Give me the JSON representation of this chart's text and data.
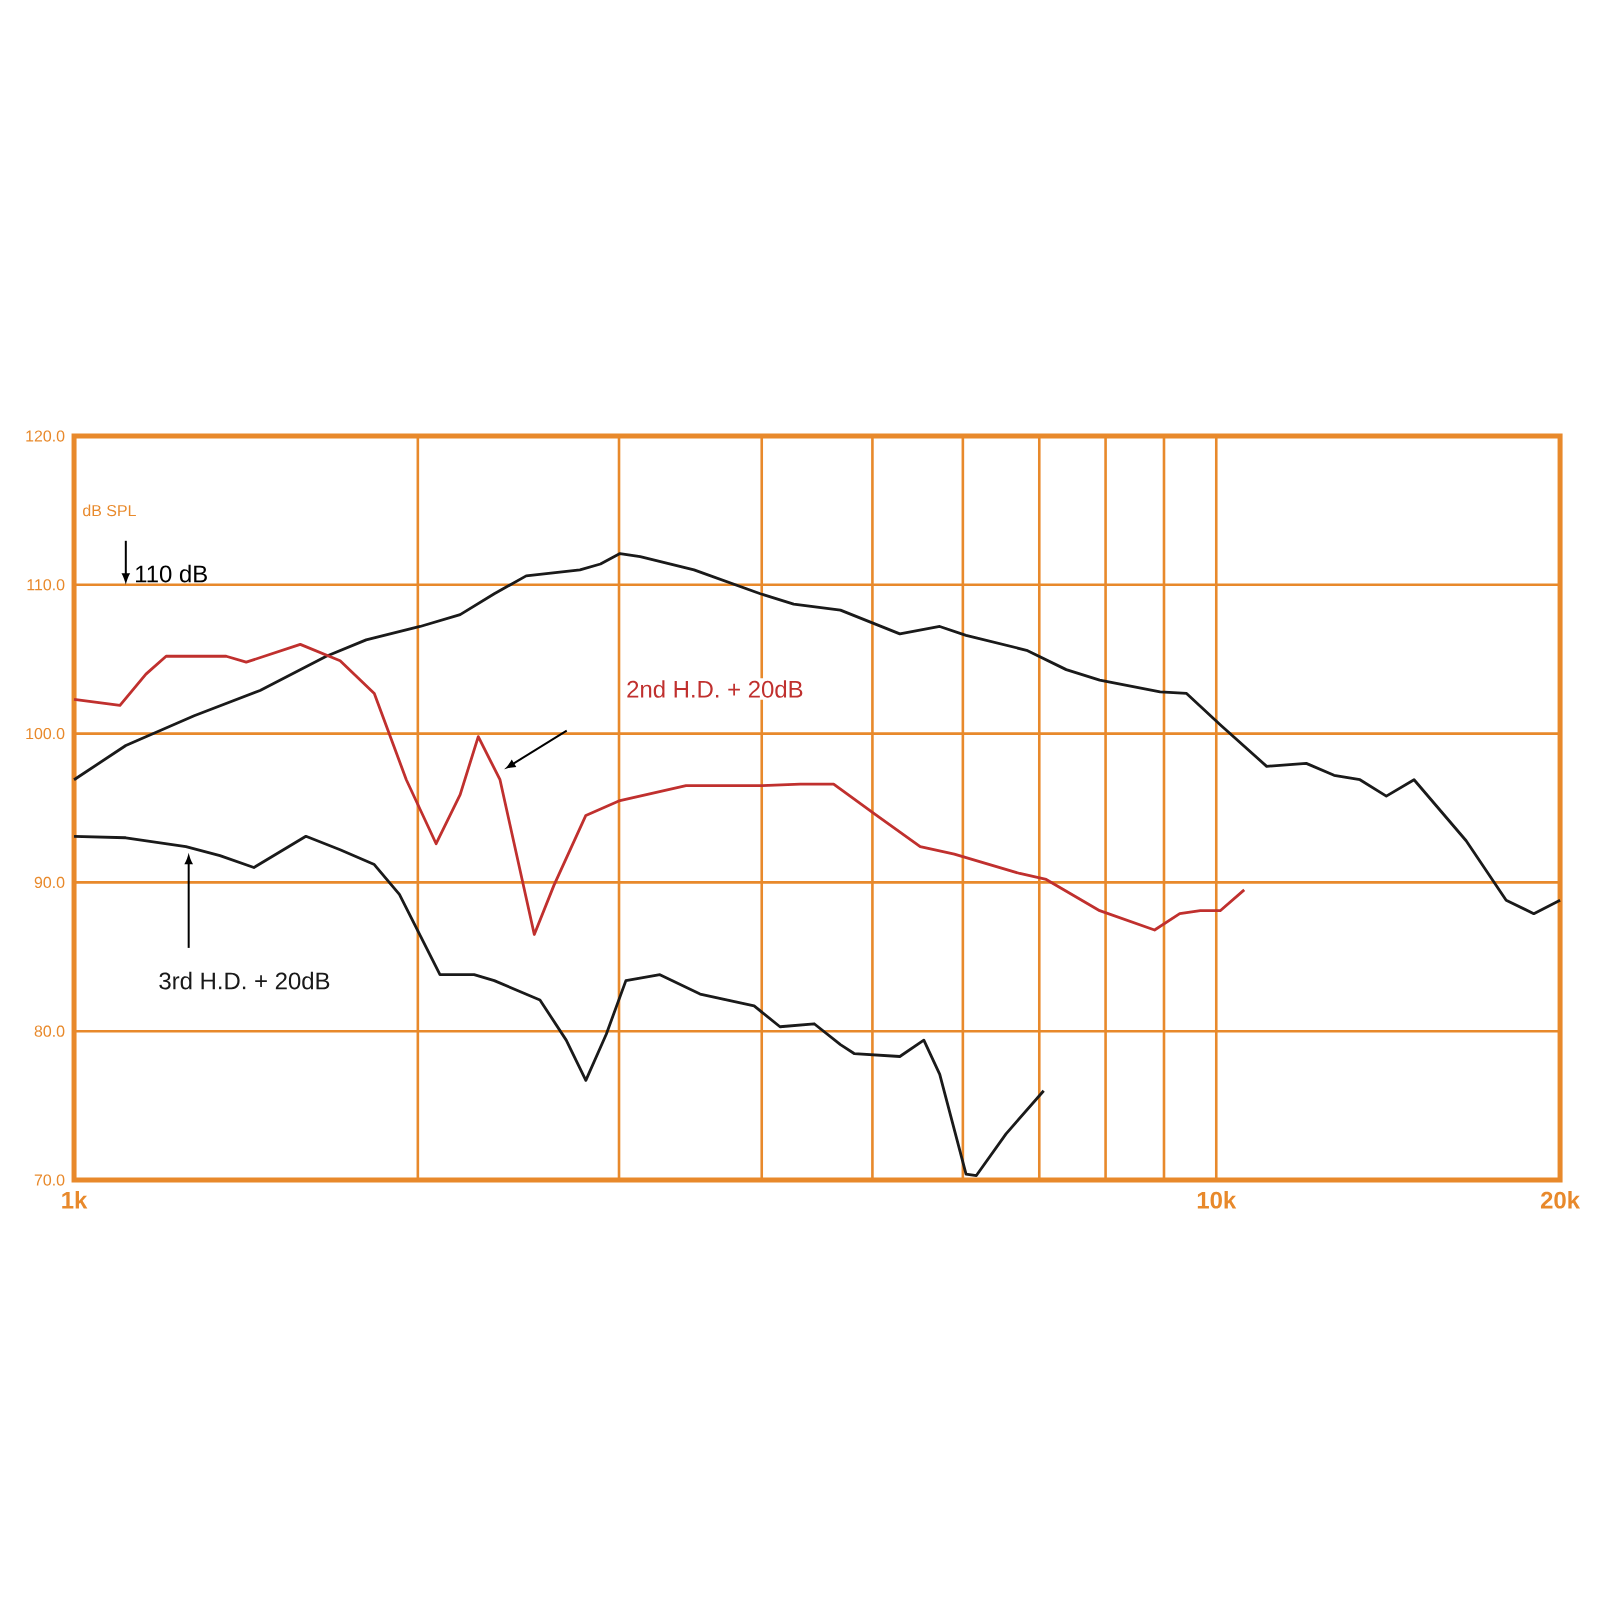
{
  "chart_data": {
    "type": "line",
    "ylabel": "dB SPL",
    "log": "x",
    "grid": true,
    "xlim": [
      1000,
      20000
    ],
    "ylim": [
      70,
      120
    ],
    "xticks": [
      {
        "value": 1000,
        "label": "1k"
      },
      {
        "value": 2000,
        "label": null
      },
      {
        "value": 3000,
        "label": null
      },
      {
        "value": 4000,
        "label": null
      },
      {
        "value": 5000,
        "label": null
      },
      {
        "value": 6000,
        "label": null
      },
      {
        "value": 7000,
        "label": null
      },
      {
        "value": 8000,
        "label": null
      },
      {
        "value": 9000,
        "label": null
      },
      {
        "value": 10000,
        "label": "10k"
      },
      {
        "value": 20000,
        "label": "20k"
      }
    ],
    "yticks": [
      {
        "value": 70,
        "label": "70.0"
      },
      {
        "value": 80,
        "label": "80.0"
      },
      {
        "value": 90,
        "label": "90.0"
      },
      {
        "value": 100,
        "label": "100.0"
      },
      {
        "value": 110,
        "label": "110.0"
      },
      {
        "value": 120,
        "label": "120.0"
      }
    ],
    "annotations": [
      "110 dB"
    ],
    "series": [
      {
        "color": "#1a1a1a",
        "x": [
          1000,
          1110,
          1274,
          1455,
          1663,
          1802,
          2009,
          2178,
          2333,
          2488,
          2773,
          2890,
          3006,
          3131,
          3490,
          3990,
          4266,
          4688,
          5284,
          5727,
          6039,
          6823,
          7391,
          7907,
          8930,
          9419,
          10080,
          11070,
          11990,
          12680,
          13360,
          14090,
          14900,
          16550,
          17940,
          18970,
          20000
        ],
        "values": [
          96.9,
          99.2,
          101.2,
          102.9,
          105.2,
          106.3,
          107.2,
          108.0,
          109.4,
          110.6,
          111.0,
          111.4,
          112.1,
          111.9,
          111.0,
          109.4,
          108.7,
          108.3,
          106.7,
          107.2,
          106.6,
          105.6,
          104.3,
          103.6,
          102.8,
          102.7,
          100.6,
          97.8,
          98.0,
          97.2,
          96.9,
          95.8,
          96.9,
          92.8,
          88.8,
          87.9,
          88.8
        ]
      },
      {
        "name": "2nd H.D. + 20dB",
        "color": "#c0302e",
        "x": [
          1000,
          1097,
          1156,
          1204,
          1359,
          1415,
          1578,
          1710,
          1832,
          1954,
          2075,
          2178,
          2259,
          2360,
          2529,
          2631,
          2806,
          3006,
          3434,
          3990,
          4325,
          4624,
          5021,
          5506,
          5898,
          6730,
          7098,
          7907,
          8831,
          9290,
          9683,
          10080,
          10580
        ],
        "values": [
          102.3,
          101.9,
          104.0,
          105.2,
          105.2,
          104.8,
          106.0,
          104.9,
          102.7,
          96.9,
          92.6,
          95.9,
          99.8,
          96.9,
          86.5,
          89.8,
          94.5,
          95.5,
          96.5,
          96.5,
          96.6,
          96.6,
          94.6,
          92.4,
          91.9,
          90.6,
          90.2,
          88.1,
          86.8,
          87.9,
          88.1,
          88.1,
          89.5
        ]
      },
      {
        "name": "3rd H.D. + 20dB",
        "color": "#1a1a1a",
        "x": [
          1000,
          1110,
          1253,
          1342,
          1437,
          1596,
          1710,
          1832,
          1927,
          2091,
          2240,
          2333,
          2558,
          2697,
          2806,
          2924,
          3042,
          3258,
          3533,
          3940,
          4150,
          4446,
          4688,
          4819,
          5284,
          5546,
          5727,
          6039,
          6166,
          6546,
          7063
        ],
        "values": [
          93.1,
          93.0,
          92.4,
          91.8,
          91.0,
          93.1,
          92.2,
          91.2,
          89.2,
          83.8,
          83.8,
          83.4,
          82.1,
          79.4,
          76.7,
          79.8,
          83.4,
          83.8,
          82.5,
          81.7,
          80.3,
          80.5,
          79.1,
          78.5,
          78.3,
          79.4,
          77.1,
          70.4,
          70.3,
          73.1,
          76.0
        ]
      }
    ]
  }
}
